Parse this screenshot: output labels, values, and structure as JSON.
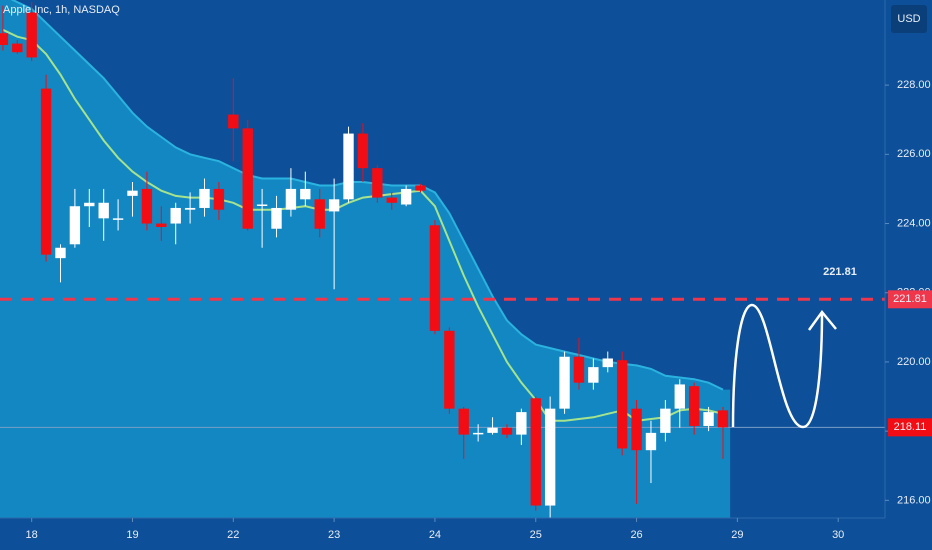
{
  "chart_data": {
    "type": "candlestick",
    "title": "Apple Inc, 1h, NASDAQ",
    "currency": "USD",
    "open": [
      229.5,
      229.2,
      230.1,
      227.9,
      223.0,
      223.4,
      224.5,
      224.15,
      224.15,
      224.8,
      225.0,
      224.0,
      224.0,
      224.4,
      224.45,
      225.0,
      227.15,
      226.75,
      224.55,
      223.85,
      224.4,
      224.7,
      224.7,
      224.35,
      224.7,
      226.6,
      225.6,
      224.75,
      224.55,
      225.1,
      223.95,
      220.9,
      218.65,
      217.95,
      217.95,
      218.1,
      217.9,
      218.95,
      215.85,
      218.65,
      220.15,
      219.4,
      219.85,
      220.05,
      218.65,
      217.45,
      217.95,
      218.65,
      219.3,
      218.15,
      218.6
    ],
    "high": [
      230.3,
      229.3,
      230.4,
      228.3,
      223.4,
      225.0,
      225.0,
      225.0,
      224.7,
      225.2,
      225.5,
      224.5,
      224.6,
      224.9,
      225.3,
      225.2,
      228.2,
      227.0,
      225.0,
      224.8,
      225.6,
      225.5,
      225.0,
      225.3,
      226.8,
      226.9,
      225.7,
      224.9,
      225.1,
      225.15,
      224.1,
      221.0,
      218.7,
      218.2,
      218.4,
      218.2,
      218.65,
      219.0,
      219.0,
      220.3,
      220.7,
      220.1,
      220.3,
      220.3,
      218.9,
      218.3,
      218.9,
      219.5,
      219.4,
      218.7,
      218.7
    ],
    "low": [
      229.0,
      228.9,
      228.7,
      222.9,
      222.3,
      223.3,
      223.9,
      223.5,
      223.8,
      224.2,
      223.8,
      223.5,
      223.4,
      224.0,
      224.2,
      224.1,
      225.8,
      223.8,
      223.3,
      223.6,
      224.2,
      224.5,
      223.6,
      222.1,
      224.6,
      225.2,
      224.6,
      224.4,
      224.5,
      224.9,
      220.8,
      218.5,
      217.2,
      217.7,
      217.9,
      217.8,
      217.6,
      215.7,
      215.5,
      218.5,
      219.2,
      219.2,
      219.7,
      217.3,
      215.9,
      216.5,
      217.7,
      218.1,
      217.9,
      218.0,
      217.2
    ],
    "close": [
      229.16,
      228.95,
      228.8,
      223.1,
      223.3,
      224.5,
      224.6,
      224.6,
      224.15,
      224.95,
      224.0,
      223.9,
      224.45,
      224.45,
      225.0,
      224.4,
      226.75,
      223.85,
      224.55,
      224.45,
      225.0,
      225.0,
      223.85,
      224.7,
      226.6,
      225.6,
      224.75,
      224.6,
      225.0,
      224.95,
      220.9,
      218.65,
      217.9,
      217.95,
      218.1,
      217.9,
      218.55,
      215.85,
      218.65,
      220.15,
      219.4,
      219.85,
      220.1,
      217.5,
      217.45,
      217.95,
      218.65,
      219.35,
      218.15,
      218.55,
      218.11
    ],
    "ma": [
      229.6,
      229.4,
      229.3,
      228.9,
      228.3,
      227.6,
      227.0,
      226.4,
      225.9,
      225.5,
      225.2,
      224.95,
      224.8,
      224.75,
      224.75,
      224.7,
      224.6,
      224.4,
      224.4,
      224.4,
      224.45,
      224.5,
      224.4,
      224.4,
      224.6,
      224.75,
      224.8,
      224.85,
      224.9,
      224.95,
      224.5,
      223.5,
      222.5,
      221.6,
      220.8,
      220.0,
      219.4,
      218.9,
      218.3,
      218.3,
      218.35,
      218.4,
      218.5,
      218.6,
      218.3,
      218.35,
      218.4,
      218.6,
      218.65,
      218.6,
      218.5
    ],
    "band_upper": [
      230.6,
      230.4,
      230.2,
      229.8,
      229.4,
      229.0,
      228.6,
      228.2,
      227.7,
      227.2,
      226.8,
      226.5,
      226.2,
      226.0,
      225.9,
      225.8,
      225.6,
      225.4,
      225.3,
      225.3,
      225.3,
      225.2,
      225.1,
      225.1,
      225.2,
      225.2,
      225.15,
      225.1,
      225.1,
      225.1,
      224.9,
      224.3,
      223.5,
      222.7,
      221.9,
      221.2,
      220.8,
      220.5,
      220.4,
      220.3,
      220.2,
      220.1,
      220.0,
      219.95,
      219.9,
      219.8,
      219.6,
      219.55,
      219.5,
      219.4,
      219.2
    ],
    "target": 221.81,
    "last": 218.11,
    "up_color": "#ffffff",
    "down_color": "#f20d14",
    "ma_color": "#a6e38c",
    "band_color": "#1287c2",
    "band_line_color": "#2bb3e0",
    "target_color": "#f0364a",
    "xlim": [
      -0.2,
      61.25
    ],
    "ylim": [
      215.49,
      230.46
    ],
    "xticks": [
      {
        "value": 2,
        "label": "18"
      },
      {
        "value": 9,
        "label": "19"
      },
      {
        "value": 16,
        "label": "22"
      },
      {
        "value": 23,
        "label": "23"
      },
      {
        "value": 30,
        "label": "24"
      },
      {
        "value": 37,
        "label": "25"
      },
      {
        "value": 44,
        "label": "26"
      },
      {
        "value": 51,
        "label": "29"
      },
      {
        "value": 58,
        "label": "30"
      }
    ],
    "yticks": [
      {
        "value": 216,
        "label": "216.00"
      },
      {
        "value": 218,
        "label": "218.00"
      },
      {
        "value": 220,
        "label": "220.00"
      },
      {
        "value": 222,
        "label": "222.00"
      },
      {
        "value": 224,
        "label": "224.00"
      },
      {
        "value": 226,
        "label": "226.00"
      },
      {
        "value": 228,
        "label": "228.00"
      }
    ]
  }
}
